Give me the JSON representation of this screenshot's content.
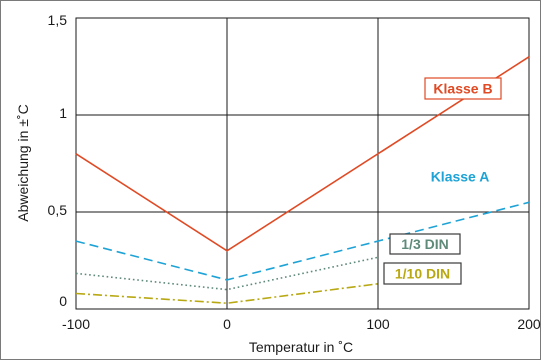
{
  "chart_data": {
    "type": "line",
    "title": "",
    "xlabel": "Temperatur in ˚C",
    "ylabel": "Abweichung in ±˚C",
    "xlim": [
      -100,
      200
    ],
    "ylim": [
      0,
      1.5
    ],
    "x_ticks": [
      "-100",
      "0",
      "100",
      "200"
    ],
    "x_tick_values": [
      -100,
      0,
      100,
      200
    ],
    "y_ticks": [
      "0",
      "0,5",
      "1",
      "1,5"
    ],
    "y_tick_values": [
      0,
      0.5,
      1,
      1.5
    ],
    "grid": true,
    "series": [
      {
        "name": "Klasse B",
        "color": "#e04a24",
        "dash": "solid",
        "label_box_border": "#e04a24",
        "points": [
          [
            -100,
            0.8
          ],
          [
            0,
            0.3
          ],
          [
            200,
            1.3
          ]
        ]
      },
      {
        "name": "Klasse A",
        "color": "#1ea3d6",
        "dash": "dashed",
        "label_box_border": "#ffffff",
        "points": [
          [
            -100,
            0.35
          ],
          [
            0,
            0.15
          ],
          [
            200,
            0.55
          ]
        ]
      },
      {
        "name": "1/3 DIN",
        "color": "#5f8a7a",
        "dash": "dotted",
        "label_box_border": "#3a3a3a",
        "points": [
          [
            -100,
            0.1833
          ],
          [
            0,
            0.1
          ],
          [
            100,
            0.2667
          ]
        ]
      },
      {
        "name": "1/10 DIN",
        "color": "#b8a813",
        "dash": "dashdot",
        "label_box_border": "#3a3a3a",
        "points": [
          [
            -100,
            0.08
          ],
          [
            0,
            0.03
          ],
          [
            100,
            0.13
          ]
        ]
      }
    ]
  }
}
